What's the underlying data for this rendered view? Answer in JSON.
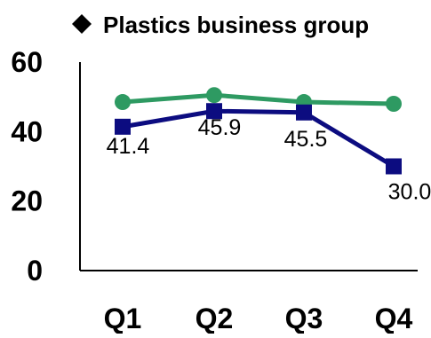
{
  "chart_data": {
    "type": "line",
    "title": "Plastics business group",
    "title_marker": "diamond-icon",
    "categories": [
      "Q1",
      "Q2",
      "Q3",
      "Q4"
    ],
    "ylim": [
      0,
      60
    ],
    "yticks": [
      0,
      20,
      40,
      60
    ],
    "grid": false,
    "legend": "none",
    "series": [
      {
        "marker": "circle",
        "color": "#2e9a62",
        "values": [
          48.5,
          50.5,
          48.5,
          48.0
        ],
        "show_labels": false
      },
      {
        "marker": "square",
        "color": "#0c0c80",
        "values": [
          41.4,
          45.9,
          45.5,
          30.0
        ],
        "labels": [
          "41.4",
          "45.9",
          "45.5",
          "30.0"
        ],
        "show_labels": true
      }
    ]
  }
}
